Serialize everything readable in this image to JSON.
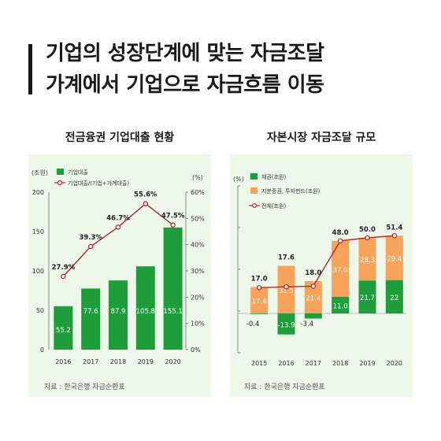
{
  "headline": {
    "line1": "기업의 성장단계에 맞는 자금조달",
    "line2": "가계에서 기업으로 자금흐름 이동"
  },
  "colors": {
    "green": "#1e9e3a",
    "orange": "#f7a35c",
    "red_line": "#b5282c",
    "panel_bg": "#edf7ea"
  },
  "chart_data": [
    {
      "type": "bar+line",
      "title": "전금융권 기업대출 현황",
      "left_axis_unit": "(조원)",
      "right_axis_unit": "(%)",
      "legend": [
        "기업대출",
        "기업대출/(기업+가계대출)"
      ],
      "categories": [
        "2016",
        "2017",
        "2018",
        "2019",
        "2020"
      ],
      "bars": {
        "name": "기업대출",
        "values": [
          55.2,
          77.6,
          87.9,
          105.8,
          155.1
        ],
        "labels": [
          "55.2",
          "77.6",
          "87.9",
          "105.8",
          "155.1"
        ]
      },
      "line": {
        "name": "기업대출/(기업+가계대출)",
        "values": [
          27.9,
          39.3,
          46.7,
          55.6,
          47.5
        ],
        "labels": [
          "27.9%",
          "39.3%",
          "46.7%",
          "55.6%",
          "47.5%"
        ]
      },
      "ylim_left": [
        0,
        200
      ],
      "yticks_left": [
        "0",
        "50",
        "100",
        "150",
        "200"
      ],
      "ylim_right": [
        0,
        60
      ],
      "yticks_right": [
        "0%",
        "10%",
        "20%",
        "30%",
        "40%",
        "50%",
        "60%"
      ],
      "grid": false,
      "source": "자료 : 한국은행 자금순환표"
    },
    {
      "type": "stacked-bar+line",
      "title": "자본시장 자금조달 규모",
      "left_axis_unit": "(%)",
      "legend": [
        "채권(조원)",
        "지분증권, 투자펀드(조원)",
        "전체(조원)"
      ],
      "categories": [
        "2015",
        "2016",
        "2017",
        "2018",
        "2019",
        "2020"
      ],
      "bonds": {
        "name": "채권(조원)",
        "values": [
          -0.4,
          -13.9,
          -3.4,
          11.0,
          21.7,
          22
        ],
        "labels": [
          "-0.4",
          "-13.9",
          "-3.4",
          "11.0",
          "21.7",
          "22"
        ]
      },
      "equity": {
        "name": "지분증권, 투자펀드(조원)",
        "values": [
          17.4,
          31.5,
          21.4,
          37.0,
          28.3,
          29.4
        ],
        "labels": [
          "17.4",
          "31.5",
          "21.4",
          "37.0",
          "28.3",
          "29.4"
        ]
      },
      "total": {
        "name": "전체(조원)",
        "values": [
          17.0,
          17.6,
          18.0,
          48.0,
          50.0,
          51.4
        ],
        "labels": [
          "17.0",
          "17.6",
          "18.0",
          "48.0",
          "50.0",
          "51.4"
        ]
      },
      "grid": false,
      "source": "자료 : 한국은행 자금순환표"
    }
  ]
}
